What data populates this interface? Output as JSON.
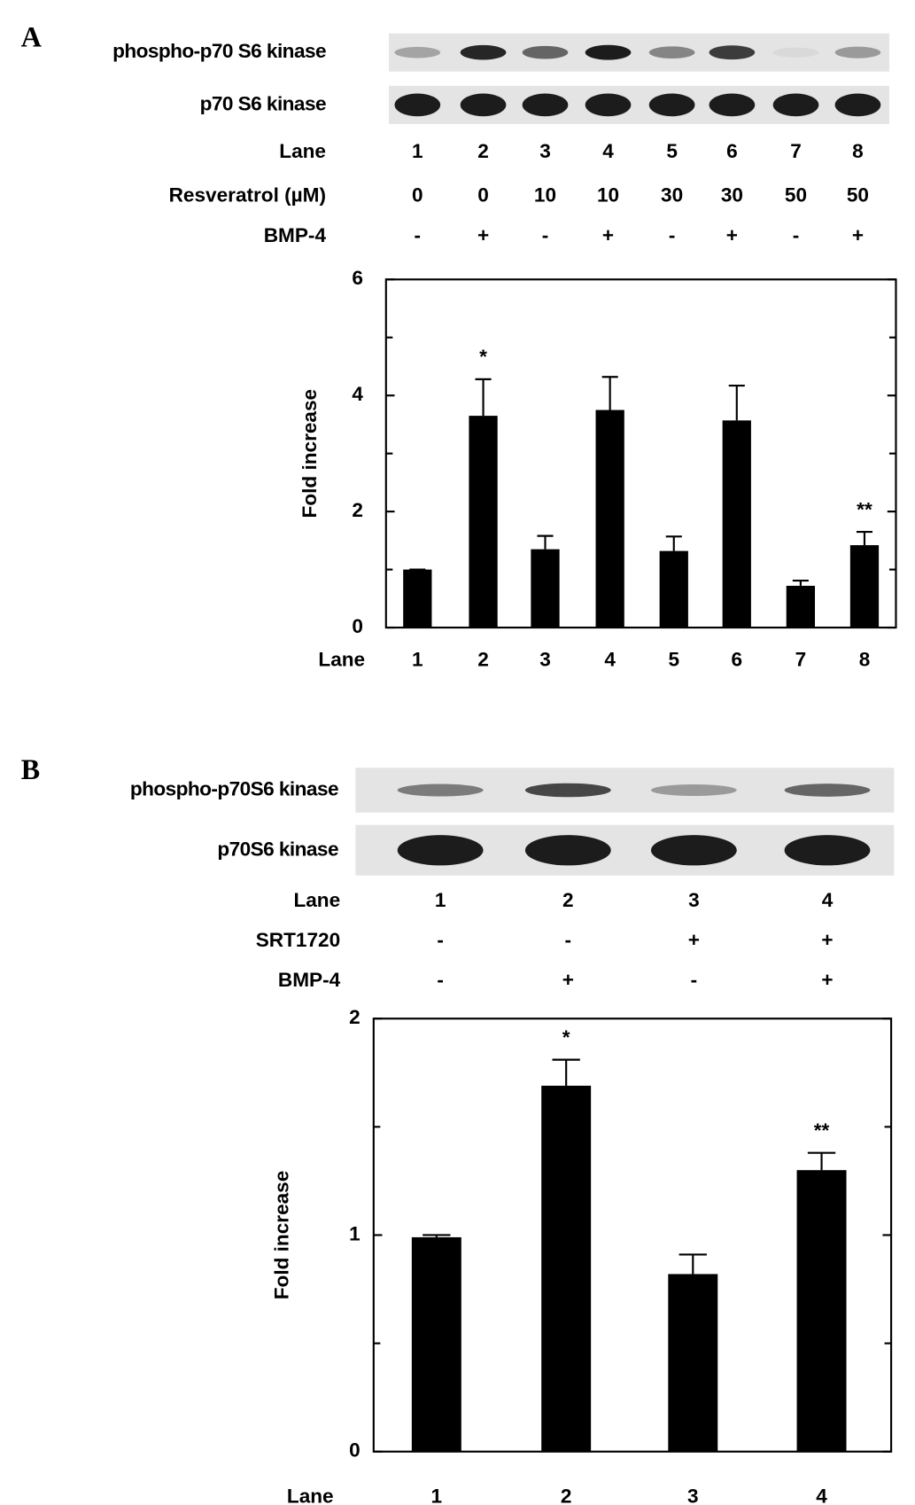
{
  "chart_data": [
    {
      "type": "bar",
      "panel": "A",
      "blots": [
        "phospho-p70 S6 kinase",
        "p70 S6 kinase"
      ],
      "conditions": [
        {
          "label": "Lane",
          "values": [
            "1",
            "2",
            "3",
            "4",
            "5",
            "6",
            "7",
            "8"
          ]
        },
        {
          "label": "Resveratrol (µM)",
          "values": [
            "0",
            "0",
            "10",
            "10",
            "30",
            "30",
            "50",
            "50"
          ]
        },
        {
          "label": "BMP-4",
          "values": [
            "-",
            "+",
            "-",
            "+",
            "-",
            "+",
            "-",
            "+"
          ]
        }
      ],
      "ylabel": "Fold increase",
      "xlabel": "Lane",
      "categories": [
        "1",
        "2",
        "3",
        "4",
        "5",
        "6",
        "7",
        "8"
      ],
      "values": [
        1.0,
        3.65,
        1.35,
        3.75,
        1.32,
        3.57,
        0.72,
        1.42
      ],
      "errors": [
        0,
        0.63,
        0.23,
        0.57,
        0.25,
        0.6,
        0.09,
        0.23
      ],
      "markers": [
        null,
        "*",
        null,
        null,
        null,
        null,
        null,
        "**"
      ],
      "color": "#000000",
      "ylim": [
        0,
        6
      ],
      "yticks": [
        0,
        2,
        4,
        6
      ],
      "minor_yticks": [
        1,
        3,
        5
      ]
    },
    {
      "type": "bar",
      "panel": "B",
      "blots": [
        "phospho-p70S6 kinase",
        "p70S6 kinase"
      ],
      "conditions": [
        {
          "label": "Lane",
          "values": [
            "1",
            "2",
            "3",
            "4"
          ]
        },
        {
          "label": "SRT1720",
          "values": [
            "-",
            "-",
            "+",
            "+"
          ]
        },
        {
          "label": "BMP-4",
          "values": [
            "-",
            "+",
            "-",
            "+"
          ]
        }
      ],
      "ylabel": "Fold increase",
      "xlabel": "Lane",
      "categories": [
        "1",
        "2",
        "3",
        "4"
      ],
      "values": [
        0.99,
        1.69,
        0.82,
        1.3
      ],
      "errors": [
        0.01,
        0.12,
        0.09,
        0.08
      ],
      "markers": [
        null,
        "*",
        null,
        "**"
      ],
      "color": "#000000",
      "ylim": [
        0,
        2
      ],
      "yticks": [
        0,
        1,
        2
      ],
      "minor_yticks": [
        0.5,
        1.5
      ]
    }
  ]
}
